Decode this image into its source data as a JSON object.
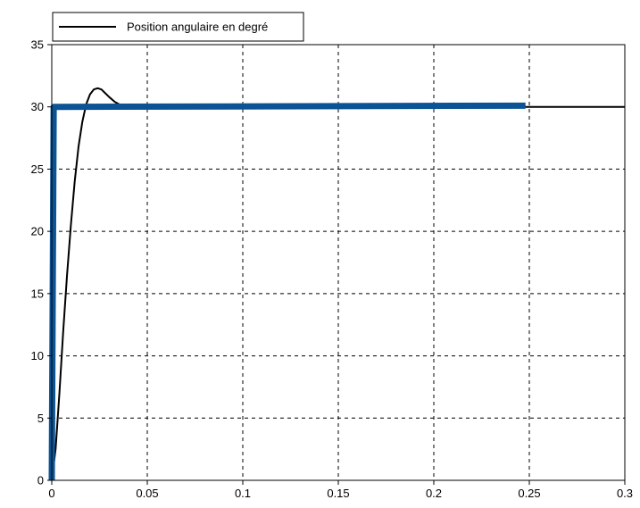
{
  "chart_data": {
    "type": "line",
    "title": "",
    "xlabel": "",
    "ylabel": "",
    "xlim": [
      0,
      0.3
    ],
    "ylim": [
      0,
      35
    ],
    "x_ticks": [
      0,
      0.05,
      0.1,
      0.15,
      0.2,
      0.25,
      0.3
    ],
    "x_tick_labels": [
      "0",
      "0.05",
      "0.1",
      "0.15",
      "0.2",
      "0.25",
      "0.3"
    ],
    "y_ticks": [
      0,
      5,
      10,
      15,
      20,
      25,
      30,
      35
    ],
    "y_tick_labels": [
      "0",
      "5",
      "10",
      "15",
      "20",
      "25",
      "30",
      "35"
    ],
    "grid": true,
    "legend_position": "top-left",
    "legend": [
      {
        "label": "Position angulaire en degré",
        "color": "#000000"
      }
    ],
    "series": [
      {
        "name": "Position angulaire en degré",
        "color": "#000000",
        "points": [
          [
            0,
            0
          ],
          [
            0.002,
            2.5
          ],
          [
            0.004,
            7
          ],
          [
            0.006,
            12
          ],
          [
            0.008,
            16.5
          ],
          [
            0.01,
            20.5
          ],
          [
            0.012,
            24
          ],
          [
            0.014,
            26.8
          ],
          [
            0.016,
            28.8
          ],
          [
            0.018,
            30.2
          ],
          [
            0.02,
            31
          ],
          [
            0.022,
            31.4
          ],
          [
            0.024,
            31.5
          ],
          [
            0.026,
            31.4
          ],
          [
            0.028,
            31.1
          ],
          [
            0.03,
            30.8
          ],
          [
            0.033,
            30.4
          ],
          [
            0.036,
            30.15
          ],
          [
            0.04,
            30
          ],
          [
            0.05,
            30
          ],
          [
            0.1,
            30
          ],
          [
            0.15,
            30
          ],
          [
            0.2,
            30
          ],
          [
            0.25,
            30
          ],
          [
            0.3,
            30
          ]
        ]
      },
      {
        "color": "#0b5394",
        "points": [
          [
            0,
            0
          ],
          [
            0.001,
            30
          ],
          [
            0.248,
            30.1
          ]
        ]
      }
    ]
  }
}
